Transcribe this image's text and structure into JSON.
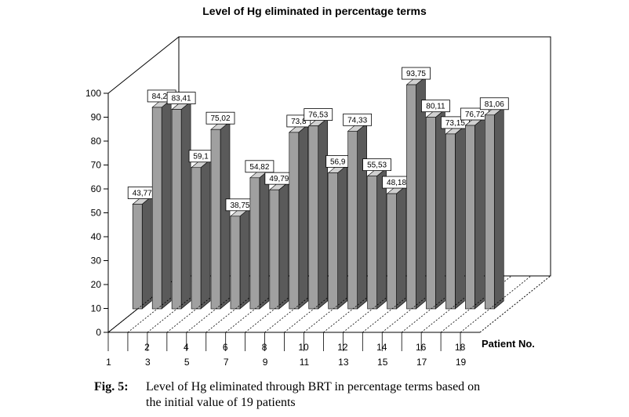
{
  "chart_data": {
    "type": "bar",
    "title": "Level of Hg eliminated in percentage terms",
    "xlabel": "Patient No.",
    "ylabel": "",
    "categories": [
      "1",
      "2",
      "3",
      "4",
      "5",
      "6",
      "7",
      "8",
      "9",
      "10",
      "11",
      "12",
      "13",
      "14",
      "15",
      "16",
      "17",
      "18",
      "19"
    ],
    "values": [
      43.77,
      84.28,
      83.41,
      59.1,
      75.02,
      38.75,
      54.82,
      49.79,
      73.8,
      76.53,
      56.9,
      74.33,
      55.53,
      48.18,
      93.75,
      80.11,
      73.15,
      76.72,
      81.06
    ],
    "value_labels": [
      "43,77",
      "84,28",
      "83,41",
      "59,1",
      "75,02",
      "38,75",
      "54,82",
      "49,79",
      "73,8",
      "76,53",
      "56,9",
      "74,33",
      "55,53",
      "48,18",
      "93,75",
      "80,11",
      "73,15",
      "76,72",
      "81,06"
    ],
    "ylim": [
      0,
      100
    ],
    "yticks": [
      "0",
      "10",
      "20",
      "30",
      "40",
      "50",
      "60",
      "70",
      "80",
      "90",
      "100"
    ],
    "grid": false,
    "style": "3d",
    "colors": {
      "bar_front": "#a0a0a0",
      "bar_side": "#5a5a5a",
      "bar_top": "#d0d0d0",
      "frame": "#000000"
    }
  },
  "caption": {
    "label": "Fig. 5:",
    "line1": "Level of Hg eliminated through BRT in percentage terms based on",
    "line2": "the initial value of 19 patients"
  }
}
